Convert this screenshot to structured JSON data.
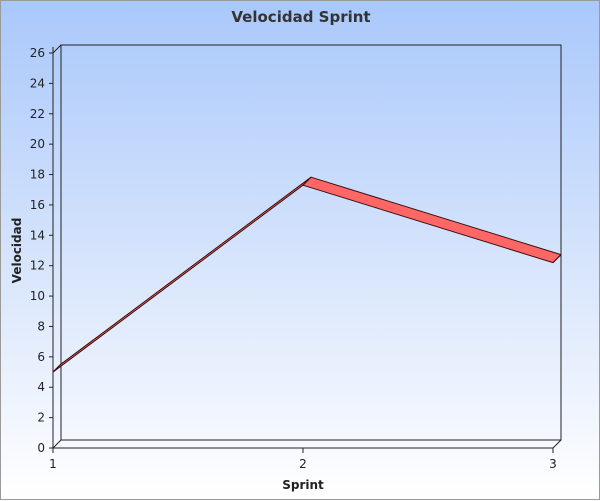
{
  "chart_data": {
    "type": "line",
    "title": "Velocidad Sprint",
    "xlabel": "Sprint",
    "ylabel": "Velocidad",
    "x": [
      1,
      2,
      3
    ],
    "series": [
      {
        "values": [
          5,
          17.3,
          12.2
        ],
        "color": "#ff6666"
      }
    ],
    "xticks": [
      "1",
      "2",
      "3"
    ],
    "yticks": [
      "0",
      "2",
      "4",
      "6",
      "8",
      "10",
      "12",
      "14",
      "16",
      "18",
      "20",
      "22",
      "24",
      "26"
    ],
    "ylim": [
      0,
      26
    ],
    "grid": false,
    "legend": "none",
    "style": "3d"
  }
}
